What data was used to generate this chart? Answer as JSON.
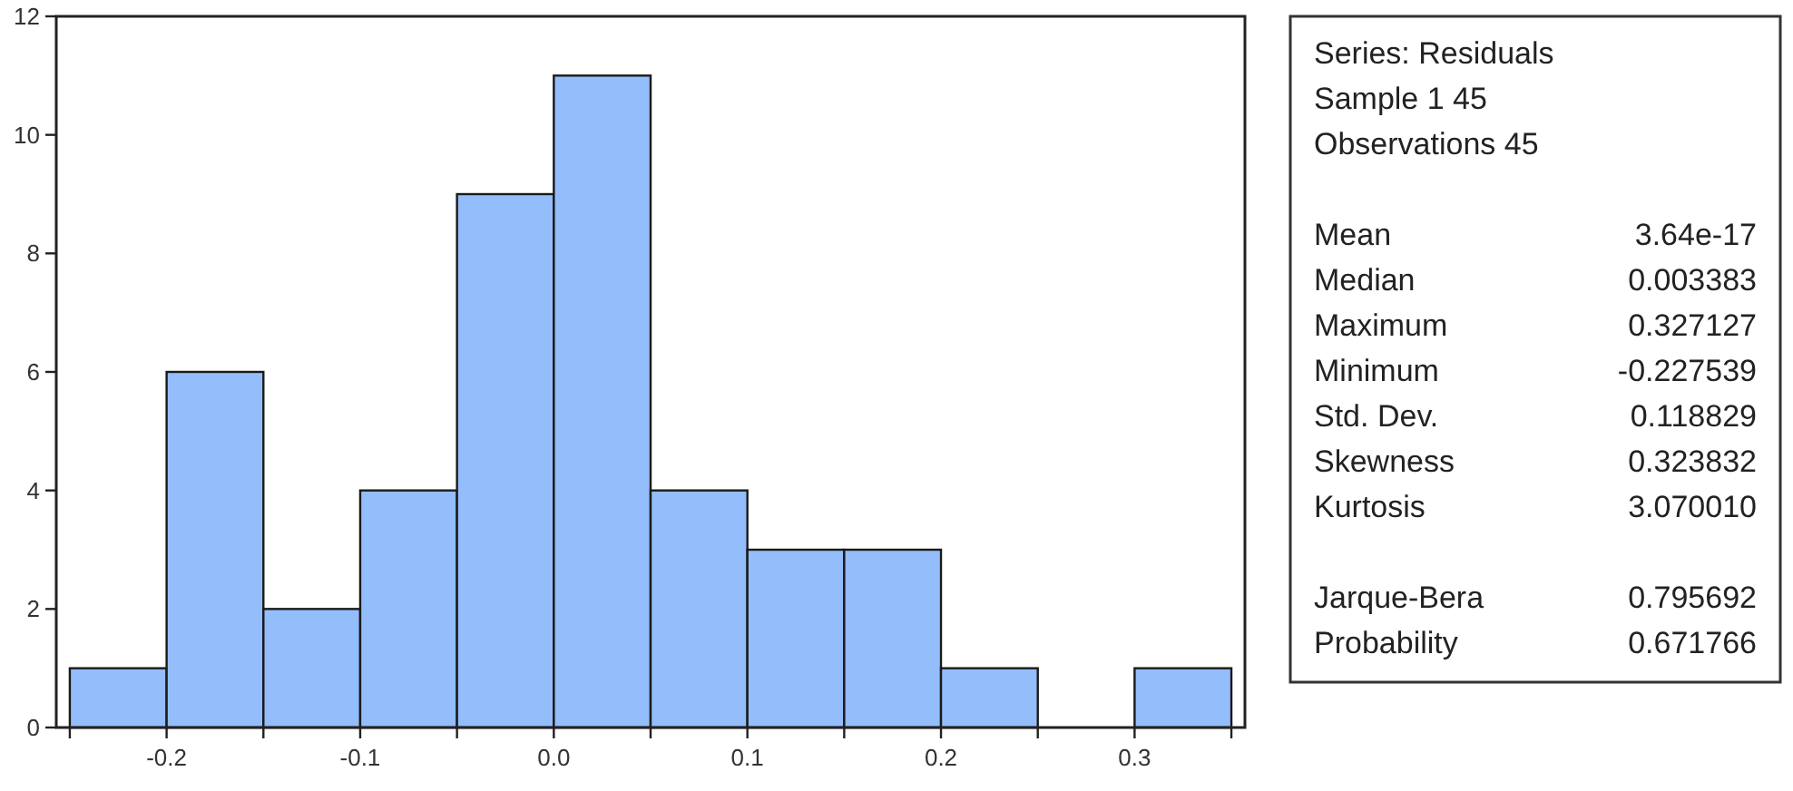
{
  "chart_data": {
    "type": "histogram",
    "bins": [
      -0.25,
      -0.2,
      -0.15,
      -0.1,
      -0.05,
      0,
      0.05,
      0.1,
      0.15,
      0.2,
      0.25,
      0.3,
      0.35
    ],
    "values": [
      1,
      6,
      2,
      4,
      9,
      11,
      4,
      3,
      3,
      1,
      0,
      1
    ],
    "color": "#94bdfb",
    "xlim": [
      -0.257,
      0.357
    ],
    "xticks": [
      {
        "value": -0.25,
        "label": null
      },
      -0.2,
      {
        "value": -0.15,
        "label": null
      },
      -0.1,
      {
        "value": -0.05,
        "label": null
      },
      {
        "value": 0,
        "label": "0.0"
      },
      {
        "value": 0.05,
        "label": null
      },
      0.1,
      {
        "value": 0.15,
        "label": null
      },
      0.2,
      {
        "value": 0.25,
        "label": null
      },
      0.3,
      {
        "value": 0.35,
        "label": null
      }
    ],
    "ylim": [
      0,
      12
    ],
    "yticks": [
      0,
      2,
      4,
      6,
      8,
      10,
      12
    ],
    "annotations": [
      "Series: Residuals\nSample 1 45\nObservations 45",
      "Mean\t3.64e-17\nMedian\t0.003383\nMaximum\t0.327127\nMinimum\t-0.227539\nStd. Dev.\t0.118829\nSkewness\t0.323832\nKurtosis\t3.070010",
      "Jarque-Bera\t0.795692\nProbability\t0.671766"
    ]
  }
}
